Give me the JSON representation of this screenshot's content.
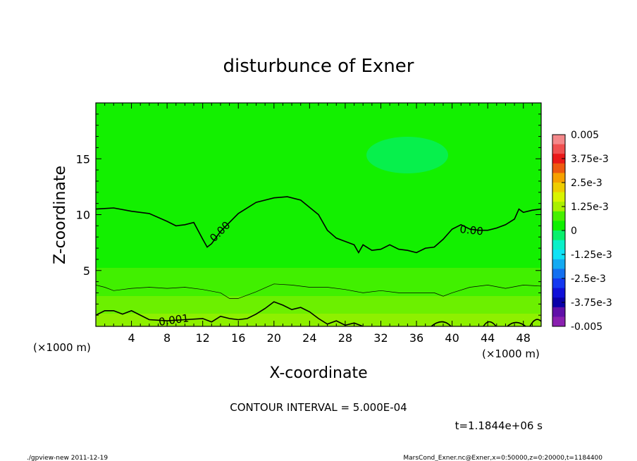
{
  "chart_data": {
    "type": "heatmap",
    "title": "disturbunce of Exner",
    "xlabel": "X-coordinate",
    "ylabel": "Z-coordinate",
    "x_unit": "(×1000 m)",
    "y_unit": "(×1000 m)",
    "xlim": [
      0,
      50
    ],
    "ylim": [
      0,
      20
    ],
    "x_ticks": [
      4,
      8,
      12,
      16,
      20,
      24,
      28,
      32,
      36,
      40,
      44,
      48
    ],
    "y_ticks": [
      5,
      10,
      15
    ],
    "colorbar": {
      "min": -0.005,
      "max": 0.005,
      "labels": [
        "0.005",
        "3.75e-3",
        "2.5e-3",
        "1.25e-3",
        "0",
        "-1.25e-3",
        "-2.5e-3",
        "-3.75e-3",
        "-0.005"
      ],
      "colors": [
        "#f4888a",
        "#f05050",
        "#ea1818",
        "#ee5a10",
        "#f6a100",
        "#eecd00",
        "#d9f400",
        "#a9f000",
        "#47f000",
        "#0ff000",
        "#08f06c",
        "#0af0c8",
        "#10e2f6",
        "#14aaf2",
        "#1470f0",
        "#1438f0",
        "#1010d8",
        "#0a00a8",
        "#6010a8",
        "#8a20b0"
      ]
    },
    "contour_labels": [
      "0.00",
      "0.00",
      "0.001"
    ],
    "contour_zero_line": {
      "x": [
        0,
        2,
        4,
        6,
        8,
        9,
        10,
        11,
        12,
        12.5,
        13,
        14,
        16,
        18,
        20,
        21.5,
        23,
        25,
        26,
        27,
        28,
        29,
        29.5,
        30,
        31,
        32,
        33,
        34,
        35,
        36,
        37,
        38,
        39,
        40,
        41,
        42,
        43,
        44,
        45,
        46,
        47,
        47.5,
        48,
        49,
        50
      ],
      "z": [
        10.5,
        10.6,
        10.3,
        10.1,
        9.4,
        9.0,
        9.1,
        9.3,
        7.8,
        7.1,
        7.4,
        8.5,
        10.1,
        11.1,
        11.5,
        11.6,
        11.3,
        10.0,
        8.6,
        7.9,
        7.6,
        7.3,
        6.6,
        7.3,
        6.8,
        6.9,
        7.3,
        6.9,
        6.8,
        6.6,
        7.0,
        7.1,
        7.8,
        8.7,
        9.1,
        8.7,
        8.6,
        8.6,
        8.8,
        9.1,
        9.6,
        10.5,
        10.2,
        10.4,
        10.5
      ]
    },
    "contour_thin_line": {
      "x": [
        0,
        1,
        2,
        3,
        4,
        6,
        8,
        10,
        12,
        14,
        15,
        16,
        18,
        20,
        22,
        24,
        26,
        28,
        30,
        32,
        34,
        36,
        38,
        39,
        40,
        42,
        44,
        46,
        48,
        50
      ],
      "z": [
        3.7,
        3.5,
        3.2,
        3.3,
        3.4,
        3.5,
        3.4,
        3.5,
        3.3,
        3.0,
        2.5,
        2.5,
        3.1,
        3.8,
        3.7,
        3.5,
        3.5,
        3.3,
        3.0,
        3.2,
        3.0,
        3.0,
        3.0,
        2.7,
        3.0,
        3.5,
        3.7,
        3.4,
        3.7,
        3.6
      ]
    },
    "contour_low_line": {
      "x": [
        0,
        1,
        2,
        3,
        4,
        5,
        6,
        8,
        10,
        12,
        13,
        14,
        15,
        16,
        17,
        18,
        19,
        20,
        21,
        22,
        23,
        24,
        25,
        26,
        27,
        28,
        29,
        30
      ],
      "z": [
        1.0,
        1.4,
        1.4,
        1.1,
        1.4,
        1.0,
        0.6,
        0.5,
        0.6,
        0.7,
        0.4,
        0.9,
        0.7,
        0.6,
        0.7,
        1.1,
        1.6,
        2.2,
        1.9,
        1.5,
        1.7,
        1.3,
        0.7,
        0.2,
        0.5,
        0.1,
        0.3,
        0.0
      ]
    },
    "grid": false,
    "legend": "colorbar-right"
  },
  "footer": {
    "contour_interval": "CONTOUR INTERVAL = 5.000E-04",
    "time": "t=1.1844e+06 s",
    "program": "./gpview-new   2011-12-19",
    "source": "MarsCond_Exner.nc@Exner,x=0:50000,z=0:20000,t=1184400"
  }
}
